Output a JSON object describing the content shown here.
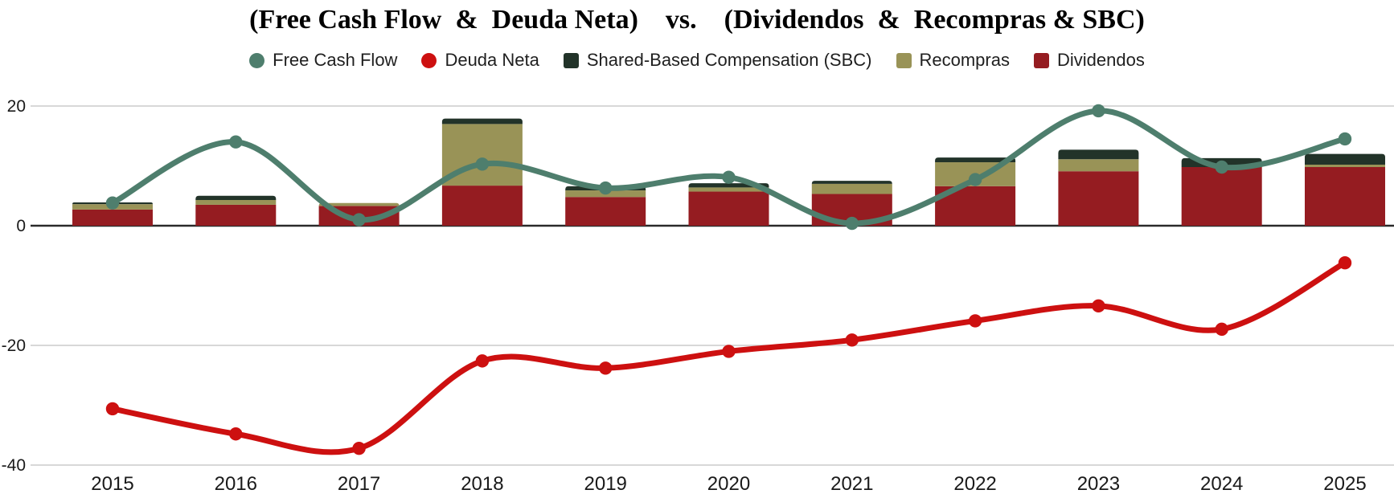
{
  "title": "(Free Cash Flow  &  Deuda Neta)    vs.    (Dividendos  &  Recompras & SBC)",
  "legend": [
    {
      "label": "Free Cash Flow",
      "marker": "circle",
      "color": "#4e7e6d"
    },
    {
      "label": "Deuda Neta",
      "marker": "circle",
      "color": "#cd1010"
    },
    {
      "label": "Shared-Based Compensation (SBC)",
      "marker": "square",
      "color": "#223329"
    },
    {
      "label": "Recompras",
      "marker": "square",
      "color": "#999357"
    },
    {
      "label": "Dividendos",
      "marker": "square",
      "color": "#951c21"
    }
  ],
  "chart_data": {
    "type": "combo: stacked bars + smoothed lines",
    "title": "(Free Cash Flow  &  Deuda Neta)    vs.    (Dividendos  &  Recompras & SBC)",
    "categories": [
      "2015",
      "2016",
      "2017",
      "2018",
      "2019",
      "2020",
      "2021",
      "2022",
      "2023",
      "2024",
      "2025"
    ],
    "bar_series": [
      {
        "name": "Dividendos",
        "color": "#951c21",
        "values": [
          2.7,
          3.5,
          3.3,
          6.7,
          4.8,
          5.7,
          5.3,
          6.6,
          9.1,
          9.8,
          9.8
        ]
      },
      {
        "name": "Recompras",
        "color": "#999357",
        "values": [
          0.9,
          0.8,
          0.5,
          10.3,
          1.1,
          0.7,
          1.7,
          4.0,
          2.0,
          0.0,
          0.4
        ]
      },
      {
        "name": "Shared-Based Compensation (SBC)",
        "color": "#223329",
        "values": [
          0.3,
          0.7,
          0.0,
          0.9,
          0.7,
          0.7,
          0.5,
          0.8,
          1.6,
          1.5,
          1.8
        ]
      }
    ],
    "line_series": [
      {
        "name": "Free Cash Flow",
        "color": "#4e7e6d",
        "values": [
          3.8,
          14.0,
          1.0,
          10.3,
          6.3,
          8.1,
          0.4,
          7.7,
          19.2,
          9.8,
          14.5
        ]
      },
      {
        "name": "Deuda Neta",
        "color": "#cd1010",
        "values": [
          -30.6,
          -34.8,
          -37.2,
          -22.6,
          -23.8,
          -21.0,
          -19.1,
          -15.9,
          -13.4,
          -17.3,
          -6.2
        ]
      }
    ],
    "y_ticks": [
      20,
      0,
      -20,
      -40
    ],
    "ylim": [
      -42,
      22
    ],
    "xlabel": "",
    "ylabel": "",
    "grid": "horizontal-light",
    "grid_color": "#d8d8d8",
    "zero_line_color": "#2a2a2a",
    "text_color": "#1a1a1a",
    "legend_position": "top-center"
  }
}
